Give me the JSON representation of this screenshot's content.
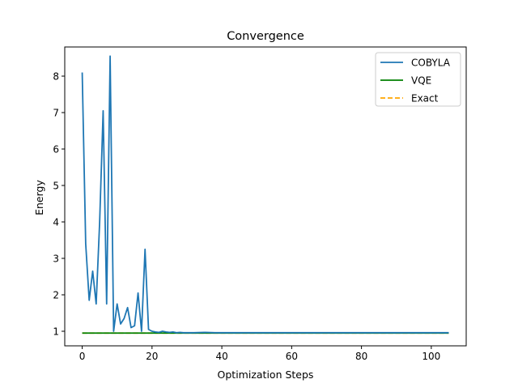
{
  "chart_data": {
    "type": "line",
    "title": "Convergence",
    "xlabel": "Optimization Steps",
    "ylabel": "Energy",
    "xlim": [
      -5,
      110
    ],
    "ylim": [
      0.6,
      8.8
    ],
    "x_ticks": [
      0,
      20,
      40,
      60,
      80,
      100
    ],
    "y_ticks": [
      1,
      2,
      3,
      4,
      5,
      6,
      7,
      8
    ],
    "grid": false,
    "legend_position": "top-right",
    "series": [
      {
        "name": "COBYLA",
        "color": "#1f77b4",
        "style": "solid",
        "x": [
          0,
          1,
          2,
          3,
          4,
          5,
          6,
          7,
          8,
          9,
          10,
          11,
          12,
          13,
          14,
          15,
          16,
          17,
          18,
          19,
          20,
          21,
          22,
          23,
          24,
          25,
          26,
          27,
          28,
          29,
          30,
          32,
          35,
          38,
          40,
          45,
          50,
          55,
          60,
          65,
          70,
          75,
          80,
          85,
          90,
          95,
          100,
          105
        ],
        "y": [
          8.1,
          3.4,
          1.85,
          2.65,
          1.75,
          4.0,
          7.05,
          1.75,
          8.55,
          1.0,
          1.75,
          1.2,
          1.35,
          1.65,
          1.1,
          1.15,
          2.05,
          1.0,
          3.25,
          1.05,
          1.0,
          0.98,
          0.97,
          1.0,
          0.98,
          0.97,
          0.98,
          0.96,
          0.97,
          0.96,
          0.96,
          0.96,
          0.97,
          0.96,
          0.96,
          0.96,
          0.96,
          0.96,
          0.96,
          0.96,
          0.96,
          0.96,
          0.96,
          0.96,
          0.96,
          0.96,
          0.96,
          0.96
        ]
      },
      {
        "name": "VQE",
        "color": "#008000",
        "style": "solid",
        "x": [
          0,
          105
        ],
        "y": [
          0.95,
          0.95
        ]
      },
      {
        "name": "Exact",
        "color": "#ffa500",
        "style": "dashed",
        "x": [
          0,
          105
        ],
        "y": [
          0.95,
          0.95
        ]
      }
    ]
  }
}
